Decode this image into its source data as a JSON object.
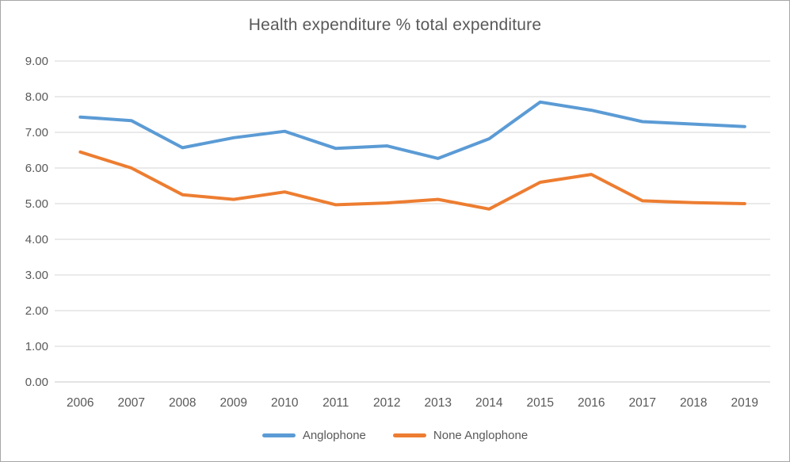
{
  "chart_data": {
    "type": "line",
    "title": "Health expenditure % total expenditure",
    "categories": [
      "2006",
      "2007",
      "2008",
      "2009",
      "2010",
      "2011",
      "2012",
      "2013",
      "2014",
      "2015",
      "2016",
      "2017",
      "2018",
      "2019"
    ],
    "series": [
      {
        "name": "Anglophone",
        "color": "#5B9BD5",
        "values": [
          7.43,
          7.33,
          6.57,
          6.85,
          7.03,
          6.55,
          6.62,
          6.27,
          6.82,
          7.85,
          7.62,
          7.3,
          7.23,
          7.16
        ]
      },
      {
        "name": "None Anglophone",
        "color": "#ED7D31",
        "values": [
          6.45,
          6.0,
          5.25,
          5.12,
          5.33,
          4.97,
          5.02,
          5.12,
          4.85,
          5.6,
          5.82,
          5.08,
          5.03,
          5.0
        ]
      }
    ],
    "xlabel": "",
    "ylabel": "",
    "ylim": [
      0,
      9
    ],
    "ytick_labels": [
      "0.00",
      "1.00",
      "2.00",
      "3.00",
      "4.00",
      "5.00",
      "6.00",
      "7.00",
      "8.00",
      "9.00"
    ],
    "grid": true,
    "legend_position": "bottom",
    "colors": {
      "text": "#595959",
      "gridline": "#D6D6D6",
      "axis_line": "#C9C9C9",
      "background": "#FFFFFF",
      "border": "#A6A6A6"
    }
  }
}
